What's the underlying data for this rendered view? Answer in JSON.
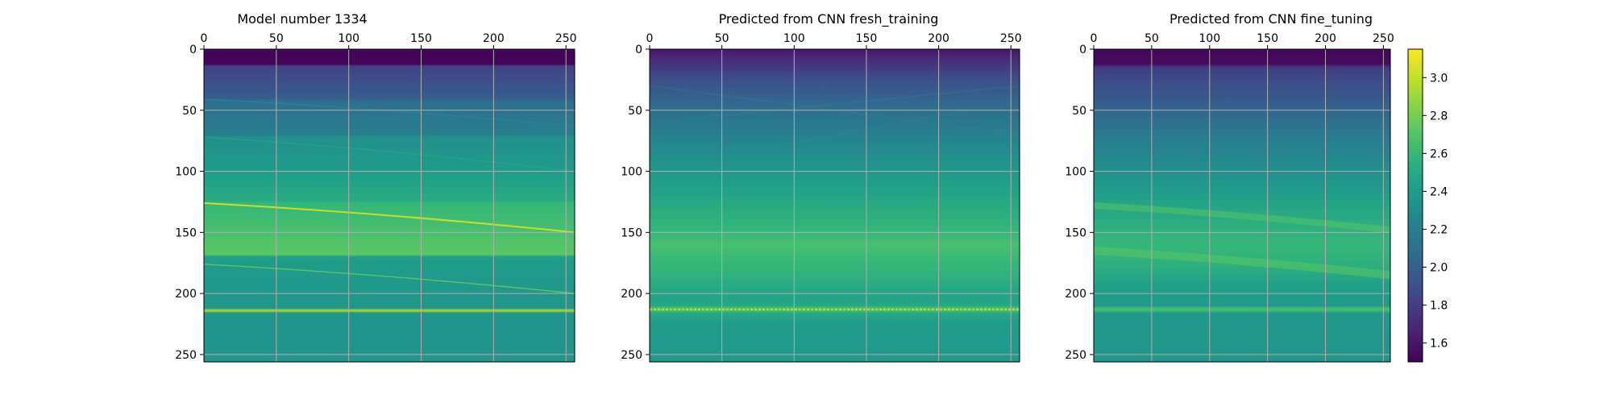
{
  "chart_data": [
    {
      "type": "heatmap",
      "title": "Model number 1334",
      "variant": "model",
      "x_ticks": [
        0,
        50,
        100,
        150,
        200,
        250
      ],
      "y_ticks": [
        0,
        50,
        100,
        150,
        200,
        250
      ],
      "xlim": [
        0,
        256
      ],
      "ylim": [
        256,
        0
      ],
      "grid": true,
      "x_axis_position": "top"
    },
    {
      "type": "heatmap",
      "title": "Predicted from CNN fresh_training",
      "variant": "fresh",
      "x_ticks": [
        0,
        50,
        100,
        150,
        200,
        250
      ],
      "y_ticks": [
        0,
        50,
        100,
        150,
        200,
        250
      ],
      "xlim": [
        0,
        256
      ],
      "ylim": [
        256,
        0
      ],
      "grid": true,
      "x_axis_position": "top"
    },
    {
      "type": "heatmap",
      "title": "Predicted from CNN fine_tuning",
      "variant": "fine",
      "x_ticks": [
        0,
        50,
        100,
        150,
        200,
        250
      ],
      "y_ticks": [
        0,
        50,
        100,
        150,
        200,
        250
      ],
      "xlim": [
        0,
        256
      ],
      "ylim": [
        256,
        0
      ],
      "grid": true,
      "x_axis_position": "top"
    }
  ],
  "colorbar": {
    "colormap": "viridis",
    "range": [
      1.5,
      3.15
    ],
    "ticks": [
      "1.6",
      "1.8",
      "2.0",
      "2.2",
      "2.4",
      "2.6",
      "2.8",
      "3.0"
    ]
  },
  "colors": {
    "grid": "#b0b0b0",
    "axis": "#000000"
  }
}
